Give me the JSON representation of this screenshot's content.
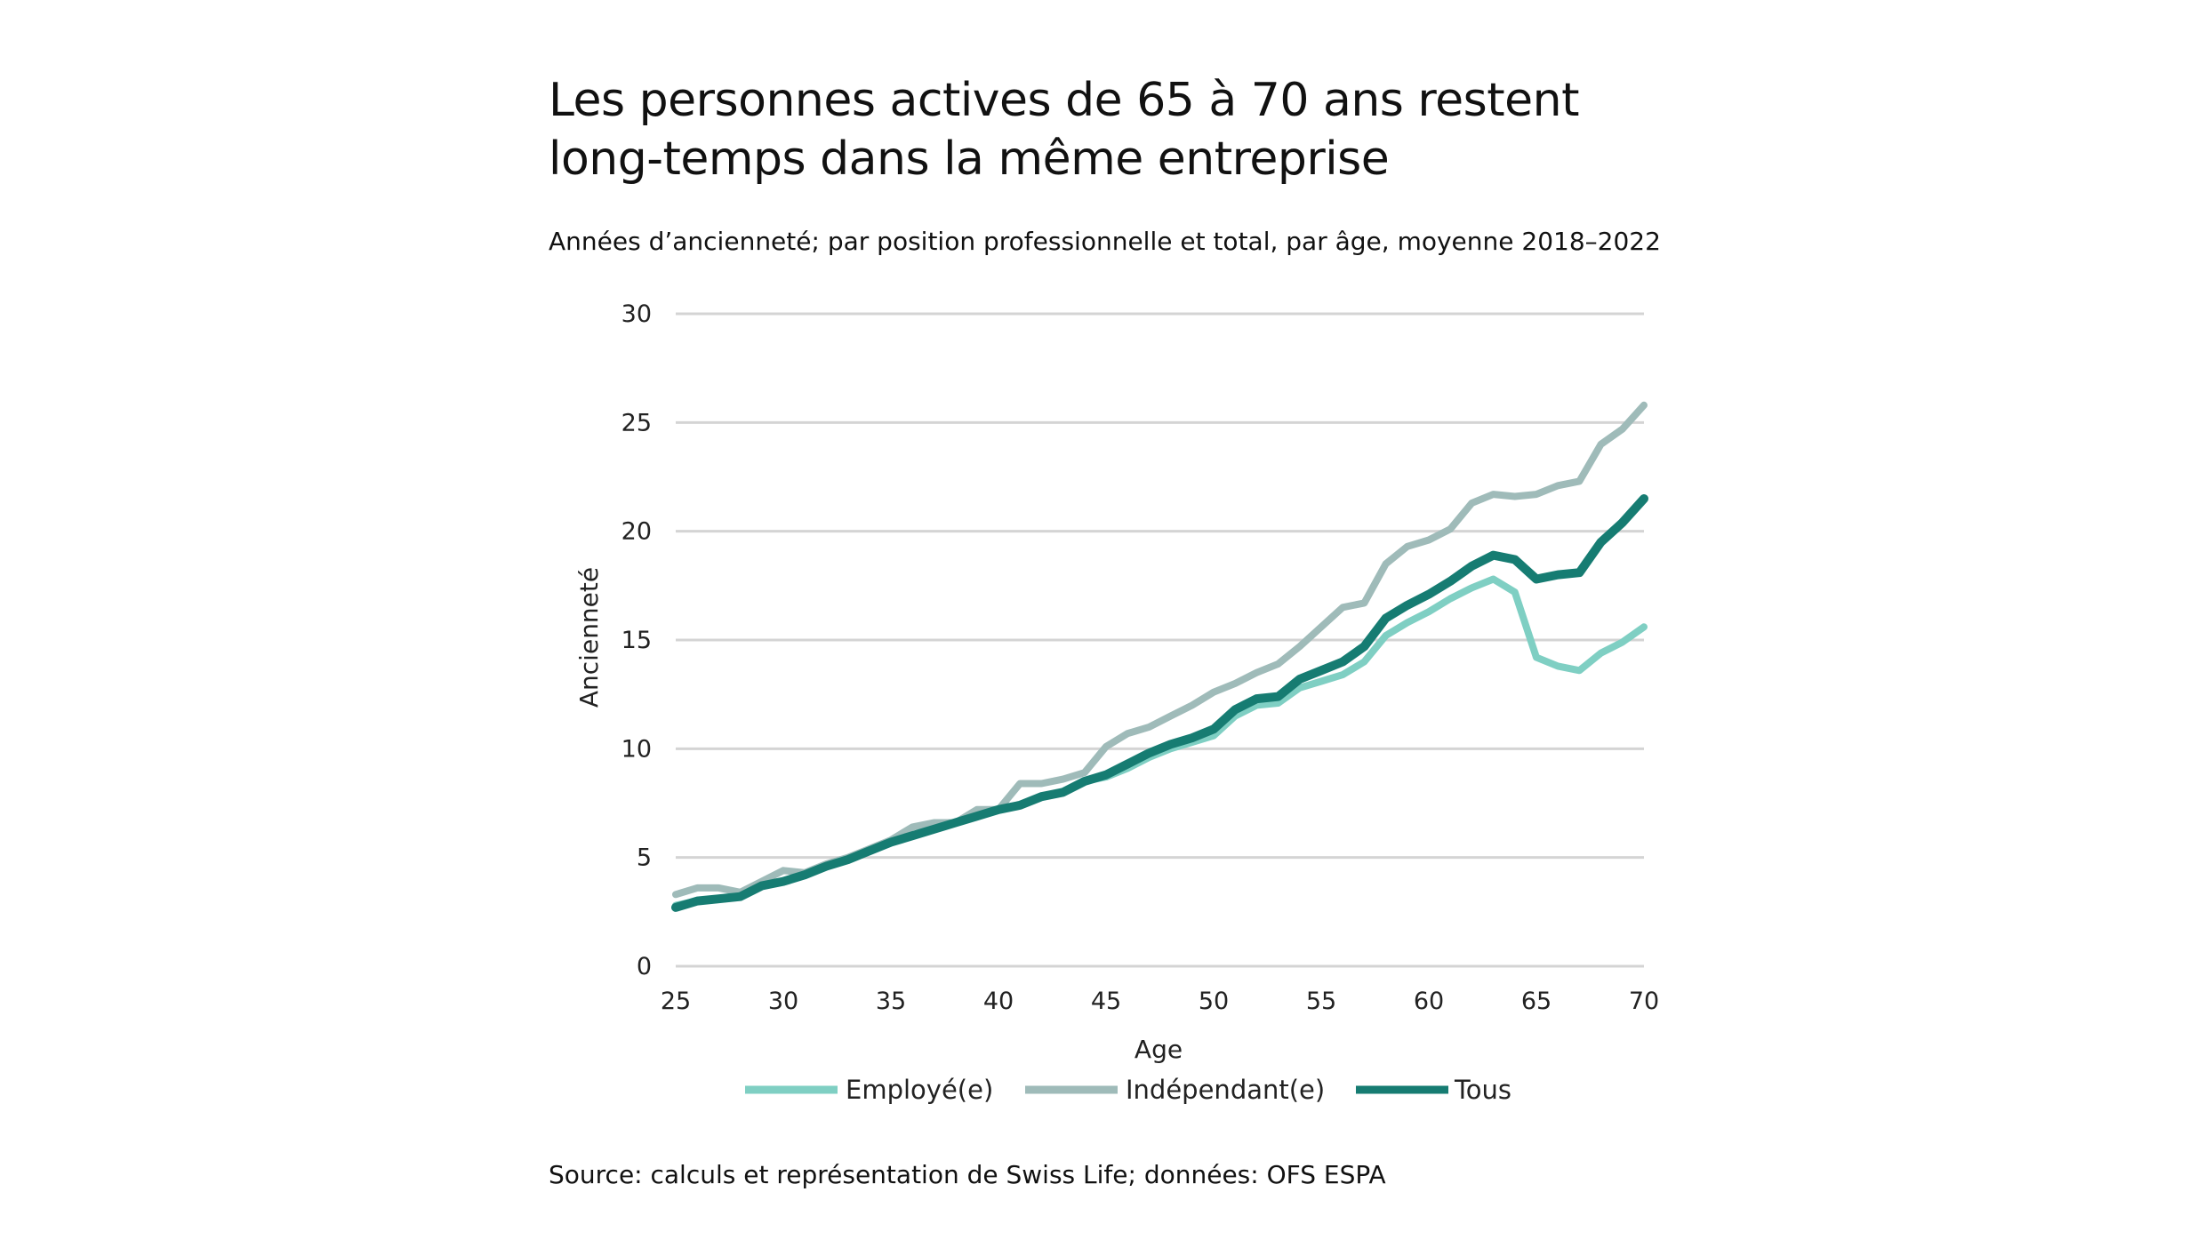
{
  "header": {
    "title": "Les personnes actives de 65 à 70 ans restent long-temps dans la même entreprise",
    "subtitle": "Années d’ancienneté; par position professionnelle et total, par âge, moyenne 2018–2022"
  },
  "footer": {
    "source": "Source: calculs et représentation de Swiss Life; données: OFS ESPA"
  },
  "chart_data": {
    "type": "line",
    "title": "Les personnes actives de 65 à 70 ans restent long-temps dans la même entreprise",
    "subtitle": "Années d’ancienneté; par position professionnelle et total, par âge, moyenne 2018–2022",
    "xlabel": "Age",
    "ylabel": "Ancienneté",
    "xlim": [
      25,
      70
    ],
    "ylim": [
      0,
      30
    ],
    "xticks": [
      25,
      30,
      35,
      40,
      45,
      50,
      55,
      60,
      65,
      70
    ],
    "yticks": [
      0,
      5,
      10,
      15,
      20,
      25,
      30
    ],
    "grid": "horizontal",
    "legend_position": "bottom",
    "x": [
      25,
      26,
      27,
      28,
      29,
      30,
      31,
      32,
      33,
      34,
      35,
      36,
      37,
      38,
      39,
      40,
      41,
      42,
      43,
      44,
      45,
      46,
      47,
      48,
      49,
      50,
      51,
      52,
      53,
      54,
      55,
      56,
      57,
      58,
      59,
      60,
      61,
      62,
      63,
      64,
      65,
      66,
      67,
      68,
      69,
      70
    ],
    "series": [
      {
        "name": "Employé(e)",
        "color": "#7fcfc3",
        "values": [
          2.8,
          3.0,
          3.1,
          3.2,
          3.7,
          3.9,
          4.2,
          4.6,
          4.9,
          5.3,
          5.7,
          6.0,
          6.3,
          6.6,
          6.9,
          7.2,
          7.4,
          7.8,
          8.0,
          8.5,
          8.7,
          9.1,
          9.6,
          10.0,
          10.3,
          10.6,
          11.5,
          12.0,
          12.1,
          12.8,
          13.1,
          13.4,
          14.0,
          15.2,
          15.8,
          16.3,
          16.9,
          17.4,
          17.8,
          17.2,
          14.2,
          13.8,
          13.6,
          14.4,
          14.9,
          15.6
        ]
      },
      {
        "name": "Indépendant(e)",
        "color": "#9fbbb9",
        "values": [
          3.3,
          3.6,
          3.6,
          3.4,
          3.9,
          4.4,
          4.3,
          4.7,
          5.0,
          5.4,
          5.8,
          6.4,
          6.6,
          6.6,
          7.2,
          7.2,
          8.4,
          8.4,
          8.6,
          8.9,
          10.1,
          10.7,
          11.0,
          11.5,
          12.0,
          12.6,
          13.0,
          13.5,
          13.9,
          14.7,
          15.6,
          16.5,
          16.7,
          18.5,
          19.3,
          19.6,
          20.1,
          21.3,
          21.7,
          21.6,
          21.7,
          22.1,
          22.3,
          24.0,
          24.7,
          25.8
        ]
      },
      {
        "name": "Tous",
        "color": "#167c72",
        "values": [
          2.7,
          3.0,
          3.1,
          3.2,
          3.7,
          3.9,
          4.2,
          4.6,
          4.9,
          5.3,
          5.7,
          6.0,
          6.3,
          6.6,
          6.9,
          7.2,
          7.4,
          7.8,
          8.0,
          8.5,
          8.8,
          9.3,
          9.8,
          10.2,
          10.5,
          10.9,
          11.8,
          12.3,
          12.4,
          13.2,
          13.6,
          14.0,
          14.7,
          16.0,
          16.6,
          17.1,
          17.7,
          18.4,
          18.9,
          18.7,
          17.8,
          18.0,
          18.1,
          19.5,
          20.4,
          21.5
        ]
      }
    ]
  }
}
